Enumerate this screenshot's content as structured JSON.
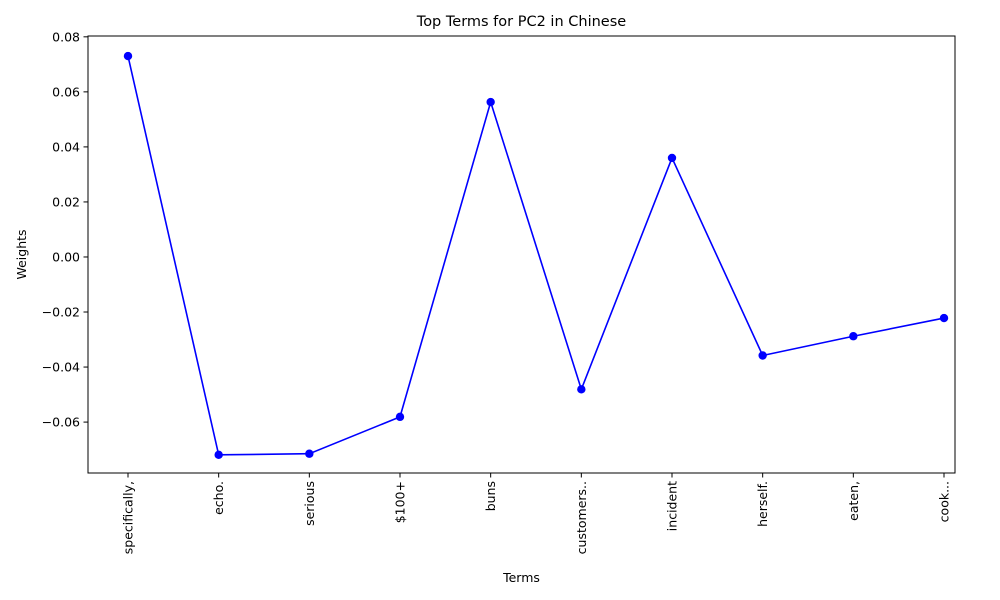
{
  "chart_data": {
    "type": "line",
    "title": "Top Terms for PC2 in Chinese",
    "xlabel": "Terms",
    "ylabel": "Weights",
    "categories": [
      "specifically,",
      "echo.",
      "serious",
      "$100+",
      "buns",
      "customers..",
      "incident",
      "herself.",
      "eaten,",
      "cook..."
    ],
    "series": [
      {
        "values": [
          0.073,
          -0.0719,
          -0.0715,
          -0.0581,
          0.0563,
          -0.0481,
          0.036,
          -0.0358,
          -0.0288,
          -0.0222
        ],
        "color": "#0000ff",
        "marker": "circle"
      }
    ],
    "ylim": [
      -0.0785,
      0.0803
    ],
    "yticks": [
      0.08,
      0.06,
      0.04,
      0.02,
      0.0,
      -0.02,
      -0.04,
      -0.06
    ],
    "ytick_labels": [
      "0.08",
      "0.06",
      "0.04",
      "0.02",
      "0.00",
      "−0.02",
      "−0.04",
      "−0.06"
    ],
    "grid": false,
    "legend": false
  }
}
